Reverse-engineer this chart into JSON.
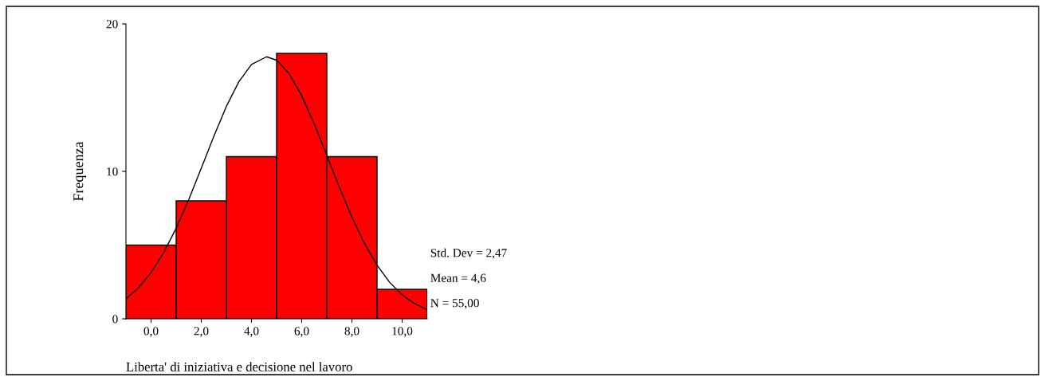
{
  "chart_data": {
    "type": "histogram",
    "xlabel": "Liberta' di iniziativa e decisione nel lavoro",
    "ylabel": "Frequenza",
    "series": [
      {
        "bins": [
          -1,
          1,
          3,
          5,
          7,
          9,
          11
        ],
        "values": [
          5,
          8,
          11,
          18,
          11,
          2
        ],
        "color": "#ff0000"
      },
      {
        "type": "line",
        "color": "#000000",
        "x": [
          -1,
          -0.5,
          0,
          0.5,
          1,
          1.5,
          2,
          2.5,
          3,
          3.5,
          4,
          4.6,
          5,
          5.5,
          6,
          6.5,
          7,
          7.5,
          8,
          8.5,
          9,
          9.5,
          10,
          10.5,
          11
        ],
        "values": [
          1.36,
          2.11,
          3.14,
          4.48,
          6.14,
          8.08,
          10.21,
          12.38,
          14.41,
          16.09,
          17.25,
          17.77,
          17.54,
          16.63,
          15.13,
          13.22,
          11.08,
          8.92,
          6.89,
          5.11,
          3.64,
          2.48,
          1.63,
          1.03,
          0.62
        ]
      }
    ],
    "xlim": [
      -1,
      11
    ],
    "ylim": [
      0,
      20
    ],
    "xticks": [
      {
        "value": 0,
        "label": "0,0"
      },
      {
        "value": 2,
        "label": "2,0"
      },
      {
        "value": 4,
        "label": "4,0"
      },
      {
        "value": 6,
        "label": "6,0"
      },
      {
        "value": 8,
        "label": "8,0"
      },
      {
        "value": 10,
        "label": "10,0"
      }
    ],
    "yticks": [
      0,
      10,
      20
    ],
    "annotations": [
      "Std. Dev = 2,47",
      "Mean = 4,6",
      "N = 55,00"
    ]
  }
}
